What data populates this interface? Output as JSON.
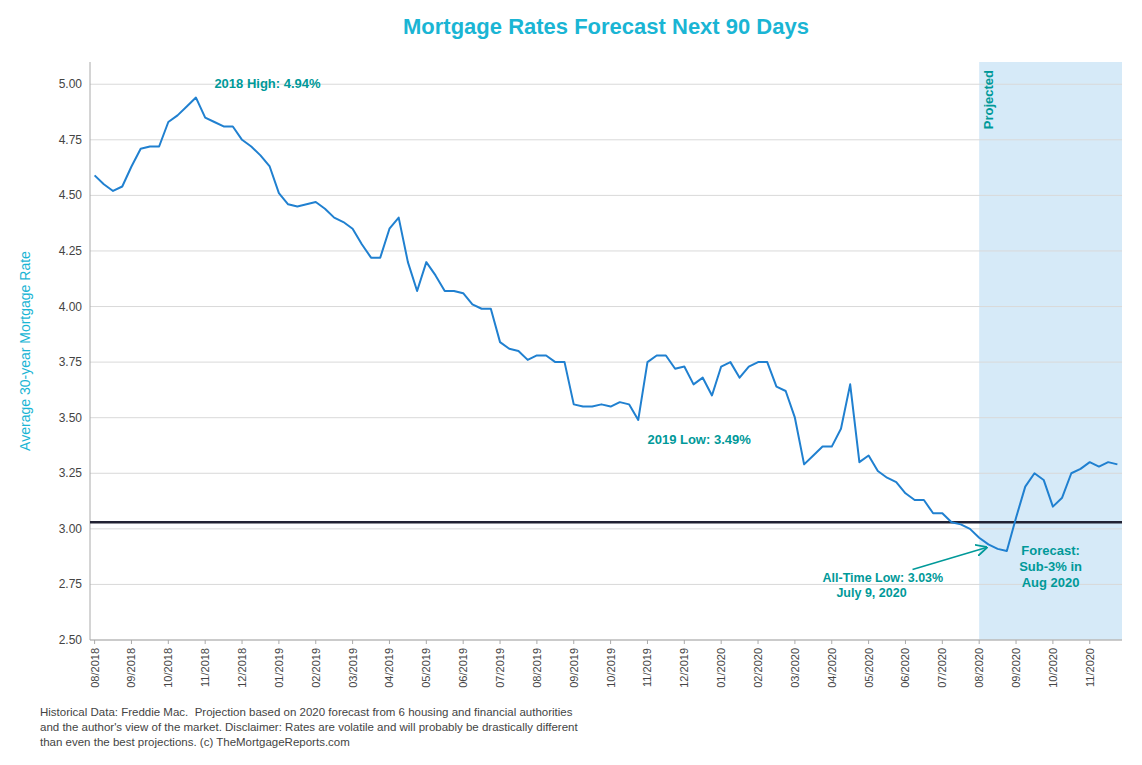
{
  "chart_data": {
    "type": "line",
    "title": "Mortgage Rates Forecast Next 90 Days",
    "y_label": "Average 30-year Mortgage Rate",
    "color": "#2080d0",
    "categories": [
      "08/2018",
      null,
      null,
      null,
      "09/2018",
      null,
      null,
      null,
      "10/2018",
      null,
      null,
      null,
      "11/2018",
      null,
      null,
      null,
      "12/2018",
      null,
      null,
      null,
      "01/2019",
      null,
      null,
      null,
      "02/2019",
      null,
      null,
      null,
      "03/2019",
      null,
      null,
      null,
      "04/2019",
      null,
      null,
      null,
      "05/2019",
      null,
      null,
      null,
      "06/2019",
      null,
      null,
      null,
      "07/2019",
      null,
      null,
      null,
      "08/2019",
      null,
      null,
      null,
      "09/2019",
      null,
      null,
      null,
      "10/2019",
      null,
      null,
      null,
      "11/2019",
      null,
      null,
      null,
      "12/2019",
      null,
      null,
      null,
      "01/2020",
      null,
      null,
      null,
      "02/2020",
      null,
      null,
      null,
      "03/2020",
      null,
      null,
      null,
      "04/2020",
      null,
      null,
      null,
      "05/2020",
      null,
      null,
      null,
      "06/2020",
      null,
      null,
      null,
      "07/2020",
      null,
      null,
      null,
      "08/2020",
      null,
      null,
      null,
      "09/2020",
      null,
      null,
      null,
      "10/2020",
      null,
      null,
      null,
      "11/2020",
      null,
      null,
      null
    ],
    "values": [
      4.59,
      4.55,
      4.52,
      4.54,
      4.63,
      4.71,
      4.72,
      4.72,
      4.83,
      4.86,
      4.9,
      4.94,
      4.85,
      4.83,
      4.81,
      4.81,
      4.75,
      4.72,
      4.68,
      4.63,
      4.51,
      4.46,
      4.45,
      4.46,
      4.47,
      4.44,
      4.4,
      4.38,
      4.35,
      4.28,
      4.22,
      4.22,
      4.35,
      4.4,
      4.2,
      4.07,
      4.2,
      4.14,
      4.07,
      4.07,
      4.06,
      4.01,
      3.99,
      3.99,
      3.84,
      3.81,
      3.8,
      3.76,
      3.78,
      3.78,
      3.75,
      3.75,
      3.56,
      3.55,
      3.55,
      3.56,
      3.55,
      3.57,
      3.56,
      3.49,
      3.75,
      3.78,
      3.78,
      3.72,
      3.73,
      3.65,
      3.68,
      3.6,
      3.73,
      3.75,
      3.68,
      3.73,
      3.75,
      3.75,
      3.64,
      3.62,
      3.5,
      3.29,
      3.33,
      3.37,
      3.37,
      3.45,
      3.65,
      3.3,
      3.33,
      3.26,
      3.23,
      3.21,
      3.16,
      3.13,
      3.13,
      3.07,
      3.07,
      3.03,
      3.02,
      3.0,
      2.96,
      2.93,
      2.91,
      2.9,
      3.05,
      3.19,
      3.25,
      3.22,
      3.1,
      3.14,
      3.25,
      3.27,
      3.3,
      3.28,
      3.3,
      3.29
    ],
    "ylim": [
      2.5,
      5.1
    ],
    "yticks": [
      {
        "value": 2.5,
        "label": "2.50"
      },
      {
        "value": 2.75,
        "label": "2.75"
      },
      {
        "value": 3,
        "label": "3.00"
      },
      {
        "value": 3.25,
        "label": "3.25"
      },
      {
        "value": 3.5,
        "label": "3.50"
      },
      {
        "value": 3.75,
        "label": "3.75"
      },
      {
        "value": 4,
        "label": "4.00"
      },
      {
        "value": 4.25,
        "label": "4.25"
      },
      {
        "value": 4.5,
        "label": "4.50"
      },
      {
        "value": 4.75,
        "label": "4.75"
      },
      {
        "value": 5,
        "label": "5.00"
      }
    ],
    "grid": true,
    "reference_line": 3.03,
    "projected": {
      "label": "Projected",
      "from": "08/2020"
    },
    "annotations": [
      {
        "text": "Forecast:\nSub-3% in\nAug 2020"
      },
      {
        "text": "2018 High: 4.94%",
        "point": 11
      },
      {
        "text": "2019 Low: 3.49%",
        "point": 59
      },
      {
        "text": "All-Time Low: 3.03%\n    July 9, 2020",
        "point": 97,
        "arrow": true
      }
    ],
    "footnote": "Historical Data: Freddie Mac.  Projection based on 2020 forecast from 6 housing and financial authorities\nand the author's view of the market. Disclaimer: Rates are volatile and will probably be drastically different\nthan even the best projections. (c) TheMortgageReports.com"
  }
}
